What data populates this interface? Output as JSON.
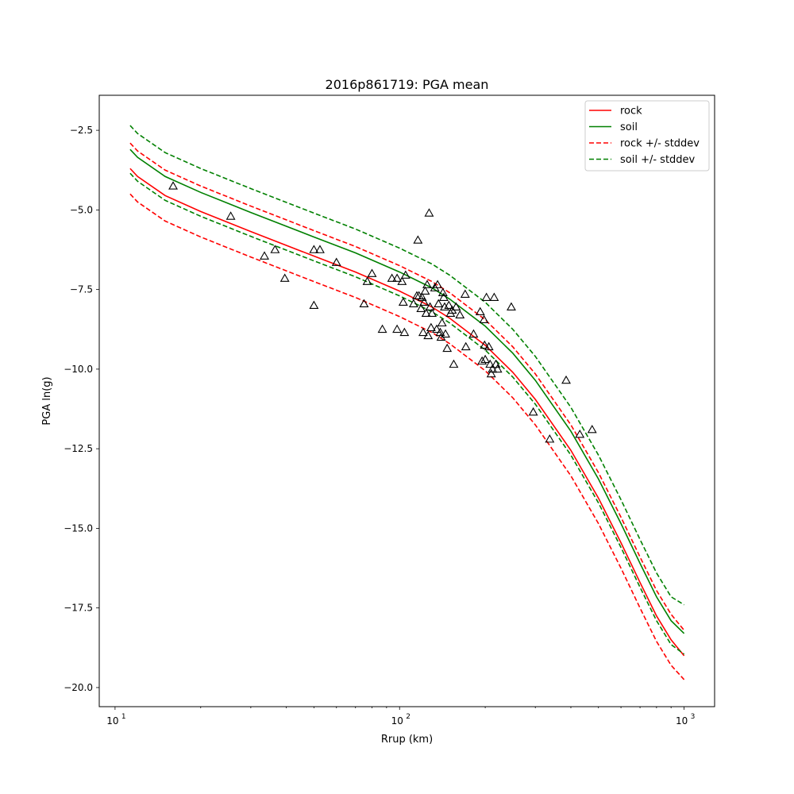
{
  "chart_data": {
    "type": "line",
    "title": "2016p861719: PGA mean",
    "xlabel": "Rrup (km)",
    "ylabel": "PGA ln(g)",
    "xscale": "log",
    "xlim": [
      8.8,
      1280
    ],
    "ylim": [
      -20.6,
      -1.4
    ],
    "x_ticks": [
      {
        "value": 10,
        "label": "10",
        "exp": "1"
      },
      {
        "value": 100,
        "label": "10",
        "exp": "2"
      },
      {
        "value": 1000,
        "label": "10",
        "exp": "3"
      }
    ],
    "y_ticks": [
      {
        "value": -2.5,
        "label": "−2.5"
      },
      {
        "value": -5.0,
        "label": "−5.0"
      },
      {
        "value": -7.5,
        "label": "−7.5"
      },
      {
        "value": -10.0,
        "label": "−10.0"
      },
      {
        "value": -12.5,
        "label": "−12.5"
      },
      {
        "value": -15.0,
        "label": "−15.0"
      },
      {
        "value": -17.5,
        "label": "−17.5"
      },
      {
        "value": -20.0,
        "label": "−20.0"
      }
    ],
    "grid": false,
    "legend_position": "top-right",
    "curve_x": [
      11.3,
      12,
      15,
      20,
      30,
      50,
      70,
      100,
      130,
      150,
      200,
      250,
      300,
      400,
      500,
      600,
      700,
      800,
      900,
      1000
    ],
    "series": [
      {
        "name": "rock",
        "color": "#ff0000",
        "dash": false,
        "values": [
          -3.7,
          -3.95,
          -4.55,
          -5.05,
          -5.68,
          -6.45,
          -6.95,
          -7.55,
          -8.05,
          -8.4,
          -9.25,
          -10.1,
          -10.95,
          -12.55,
          -14.05,
          -15.45,
          -16.7,
          -17.75,
          -18.5,
          -19.0
        ]
      },
      {
        "name": "soil",
        "color": "#008000",
        "dash": false,
        "values": [
          -3.1,
          -3.35,
          -3.95,
          -4.45,
          -5.08,
          -5.85,
          -6.35,
          -6.95,
          -7.45,
          -7.8,
          -8.65,
          -9.5,
          -10.35,
          -11.95,
          -13.45,
          -14.85,
          -16.1,
          -17.15,
          -17.9,
          -18.3
        ]
      },
      {
        "name": "rock +/- stddev",
        "color": "#ff0000",
        "dash": true,
        "values": [
          -2.9,
          -3.15,
          -3.75,
          -4.25,
          -4.88,
          -5.65,
          -6.15,
          -6.75,
          -7.25,
          -7.6,
          -8.45,
          -9.3,
          -10.15,
          -11.75,
          -13.25,
          -14.65,
          -15.9,
          -16.95,
          -17.7,
          -18.2
        ]
      },
      {
        "name": "rock +/- stddev",
        "color": "#ff0000",
        "dash": true,
        "legend": false,
        "values": [
          -4.5,
          -4.75,
          -5.35,
          -5.85,
          -6.48,
          -7.25,
          -7.75,
          -8.35,
          -8.85,
          -9.2,
          -10.05,
          -10.9,
          -11.75,
          -13.35,
          -14.85,
          -16.25,
          -17.5,
          -18.55,
          -19.3,
          -19.75
        ]
      },
      {
        "name": "soil +/- stddev",
        "color": "#008000",
        "dash": true,
        "values": [
          -2.35,
          -2.6,
          -3.2,
          -3.7,
          -4.33,
          -5.1,
          -5.6,
          -6.2,
          -6.7,
          -7.05,
          -7.9,
          -8.75,
          -9.6,
          -11.2,
          -12.7,
          -14.1,
          -15.35,
          -16.4,
          -17.15,
          -17.4
        ]
      },
      {
        "name": "soil +/- stddev",
        "color": "#008000",
        "dash": true,
        "legend": false,
        "values": [
          -3.85,
          -4.1,
          -4.7,
          -5.2,
          -5.83,
          -6.6,
          -7.1,
          -7.7,
          -8.2,
          -8.55,
          -9.4,
          -10.25,
          -11.1,
          -12.7,
          -14.2,
          -15.6,
          -16.85,
          -17.9,
          -18.65,
          -18.95
        ]
      }
    ],
    "observations": [
      {
        "x": 16,
        "y": -4.25
      },
      {
        "x": 25.5,
        "y": -5.2
      },
      {
        "x": 33.5,
        "y": -6.45
      },
      {
        "x": 36.5,
        "y": -6.25
      },
      {
        "x": 39.5,
        "y": -7.15
      },
      {
        "x": 50,
        "y": -6.25
      },
      {
        "x": 50,
        "y": -8.0
      },
      {
        "x": 52.5,
        "y": -6.25
      },
      {
        "x": 60,
        "y": -6.65
      },
      {
        "x": 75,
        "y": -7.95
      },
      {
        "x": 77,
        "y": -7.25
      },
      {
        "x": 80,
        "y": -7.0
      },
      {
        "x": 87,
        "y": -8.75
      },
      {
        "x": 94,
        "y": -7.15
      },
      {
        "x": 98,
        "y": -8.75
      },
      {
        "x": 98,
        "y": -7.15
      },
      {
        "x": 102,
        "y": -7.25
      },
      {
        "x": 103,
        "y": -7.9
      },
      {
        "x": 104,
        "y": -8.85
      },
      {
        "x": 105,
        "y": -7.05
      },
      {
        "x": 112,
        "y": -7.95
      },
      {
        "x": 115,
        "y": -7.7
      },
      {
        "x": 116,
        "y": -5.95
      },
      {
        "x": 117,
        "y": -7.7
      },
      {
        "x": 119,
        "y": -8.1
      },
      {
        "x": 120,
        "y": -7.75
      },
      {
        "x": 121,
        "y": -8.85
      },
      {
        "x": 122,
        "y": -7.9
      },
      {
        "x": 123,
        "y": -7.55
      },
      {
        "x": 124,
        "y": -8.25
      },
      {
        "x": 125,
        "y": -7.35
      },
      {
        "x": 126,
        "y": -8.95
      },
      {
        "x": 127,
        "y": -5.1
      },
      {
        "x": 128,
        "y": -8.05
      },
      {
        "x": 129,
        "y": -8.7
      },
      {
        "x": 130,
        "y": -8.25
      },
      {
        "x": 133,
        "y": -7.45
      },
      {
        "x": 135,
        "y": -8.75
      },
      {
        "x": 136,
        "y": -7.35
      },
      {
        "x": 137,
        "y": -7.95
      },
      {
        "x": 139,
        "y": -8.85
      },
      {
        "x": 140,
        "y": -9.0
      },
      {
        "x": 141,
        "y": -8.55
      },
      {
        "x": 142,
        "y": -7.6
      },
      {
        "x": 143,
        "y": -7.75
      },
      {
        "x": 144,
        "y": -8.05
      },
      {
        "x": 145,
        "y": -8.9
      },
      {
        "x": 147,
        "y": -9.35
      },
      {
        "x": 149,
        "y": -8.0
      },
      {
        "x": 151,
        "y": -8.25
      },
      {
        "x": 153,
        "y": -8.15
      },
      {
        "x": 155,
        "y": -9.85
      },
      {
        "x": 158,
        "y": -8.05
      },
      {
        "x": 163,
        "y": -8.3
      },
      {
        "x": 170,
        "y": -7.65
      },
      {
        "x": 171,
        "y": -9.3
      },
      {
        "x": 182,
        "y": -8.9
      },
      {
        "x": 192,
        "y": -8.2
      },
      {
        "x": 195,
        "y": -9.75
      },
      {
        "x": 198,
        "y": -8.45
      },
      {
        "x": 199,
        "y": -9.25
      },
      {
        "x": 200,
        "y": -9.7
      },
      {
        "x": 202,
        "y": -7.75
      },
      {
        "x": 206,
        "y": -9.3
      },
      {
        "x": 208,
        "y": -9.85
      },
      {
        "x": 210,
        "y": -10.15
      },
      {
        "x": 212,
        "y": -10.0
      },
      {
        "x": 215,
        "y": -7.75
      },
      {
        "x": 218,
        "y": -9.85
      },
      {
        "x": 221,
        "y": -10.0
      },
      {
        "x": 247,
        "y": -8.05
      },
      {
        "x": 295,
        "y": -11.35
      },
      {
        "x": 337,
        "y": -12.2
      },
      {
        "x": 385,
        "y": -10.35
      },
      {
        "x": 430,
        "y": -12.05
      },
      {
        "x": 475,
        "y": -11.9
      }
    ]
  }
}
